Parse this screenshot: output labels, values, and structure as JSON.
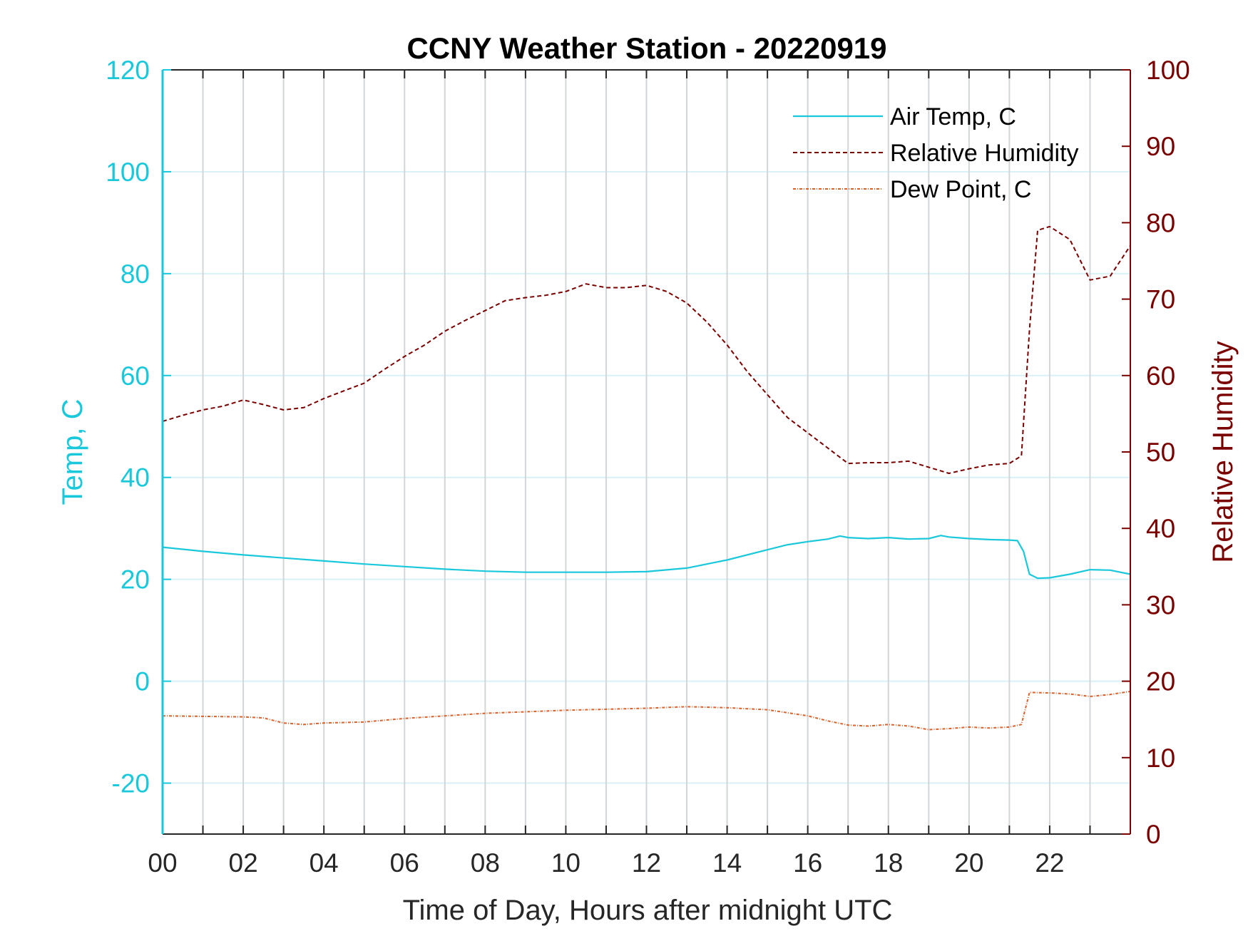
{
  "chart_data": {
    "type": "line",
    "title": "CCNY Weather Station - 20220919",
    "xlabel": "Time of Day, Hours after midnight UTC",
    "ylabel_left": "Temp, C",
    "ylabel_right": "Relative Humidity",
    "xlim": [
      0,
      24
    ],
    "ylim_left": [
      -30,
      120
    ],
    "ylim_right": [
      0,
      100
    ],
    "x_ticks": [
      "00",
      "02",
      "04",
      "06",
      "08",
      "10",
      "12",
      "14",
      "16",
      "18",
      "20",
      "22"
    ],
    "x_tick_values": [
      0,
      2,
      4,
      6,
      8,
      10,
      12,
      14,
      16,
      18,
      20,
      22
    ],
    "y_left_ticks": [
      -20,
      0,
      20,
      40,
      60,
      80,
      100,
      120
    ],
    "y_right_ticks": [
      0,
      10,
      20,
      30,
      40,
      50,
      60,
      70,
      80,
      90,
      100
    ],
    "grid": true,
    "legend_position": "top-right",
    "colors": {
      "left_axis": "#1ac8dc",
      "right_axis": "#7a0000",
      "air_temp": "#1ac8dc",
      "humidity": "#7a0000",
      "dew_point": "#d9622b",
      "vgrid": "#d3d6d8",
      "hgrid": "#d8f1f6"
    },
    "series": [
      {
        "name": "Air Temp, C",
        "axis": "left",
        "x": [
          0,
          1,
          2,
          3,
          4,
          5,
          6,
          7,
          8,
          9,
          10,
          11,
          12,
          13,
          14,
          15,
          15.5,
          16,
          16.5,
          16.8,
          17,
          17.5,
          18,
          18.5,
          19,
          19.3,
          19.5,
          20,
          20.5,
          21,
          21.2,
          21.35,
          21.5,
          21.7,
          22,
          22.5,
          23,
          23.5,
          24
        ],
        "values": [
          26.3,
          25.5,
          24.8,
          24.2,
          23.6,
          23.0,
          22.5,
          22.0,
          21.6,
          21.4,
          21.4,
          21.4,
          21.5,
          22.2,
          23.8,
          25.8,
          26.8,
          27.4,
          27.9,
          28.5,
          28.2,
          28.0,
          28.2,
          27.9,
          28.0,
          28.6,
          28.3,
          28.0,
          27.8,
          27.7,
          27.6,
          25.5,
          21.0,
          20.2,
          20.3,
          21.0,
          21.9,
          21.8,
          21.0
        ]
      },
      {
        "name": "Relative Humidity",
        "axis": "right",
        "x": [
          0,
          0.5,
          1,
          1.5,
          2,
          2.5,
          3,
          3.5,
          4,
          4.5,
          5,
          5.5,
          6,
          6.5,
          7,
          7.5,
          8,
          8.5,
          9,
          9.5,
          10,
          10.5,
          11,
          11.5,
          12,
          12.5,
          13,
          13.5,
          14,
          14.5,
          15,
          15.5,
          16,
          16.5,
          17,
          17.5,
          18,
          18.5,
          19,
          19.5,
          20,
          20.5,
          21,
          21.3,
          21.5,
          21.7,
          22,
          22.5,
          23,
          23.5,
          24
        ],
        "values": [
          54.0,
          54.8,
          55.5,
          56.0,
          56.8,
          56.2,
          55.5,
          55.8,
          57.0,
          58.0,
          59.0,
          60.8,
          62.5,
          64.0,
          65.8,
          67.2,
          68.5,
          69.8,
          70.2,
          70.5,
          71.0,
          72.0,
          71.5,
          71.5,
          71.8,
          71.0,
          69.5,
          67.0,
          64.0,
          60.5,
          57.5,
          54.5,
          52.5,
          50.5,
          48.5,
          48.6,
          48.6,
          48.8,
          48.0,
          47.2,
          47.8,
          48.3,
          48.5,
          49.5,
          66.0,
          79.0,
          79.5,
          77.8,
          72.5,
          73.0,
          77.0
        ]
      },
      {
        "name": "Dew Point, C",
        "axis": "left",
        "x": [
          0,
          1,
          2,
          2.5,
          3,
          3.5,
          4,
          5,
          6,
          7,
          8,
          9,
          10,
          11,
          12,
          13,
          14,
          15,
          15.5,
          16,
          16.5,
          17,
          17.5,
          18,
          18.5,
          19,
          19.5,
          20,
          20.5,
          21,
          21.3,
          21.5,
          22,
          22.5,
          23,
          23.5,
          24
        ],
        "values": [
          -6.8,
          -6.9,
          -7.0,
          -7.2,
          -8.2,
          -8.5,
          -8.2,
          -8.0,
          -7.3,
          -6.8,
          -6.3,
          -6.0,
          -5.7,
          -5.5,
          -5.3,
          -5.0,
          -5.2,
          -5.6,
          -6.2,
          -6.8,
          -7.8,
          -8.6,
          -8.8,
          -8.5,
          -8.8,
          -9.5,
          -9.3,
          -9.0,
          -9.2,
          -9.0,
          -8.5,
          -2.2,
          -2.3,
          -2.5,
          -3.0,
          -2.6,
          -2.0
        ]
      }
    ]
  }
}
